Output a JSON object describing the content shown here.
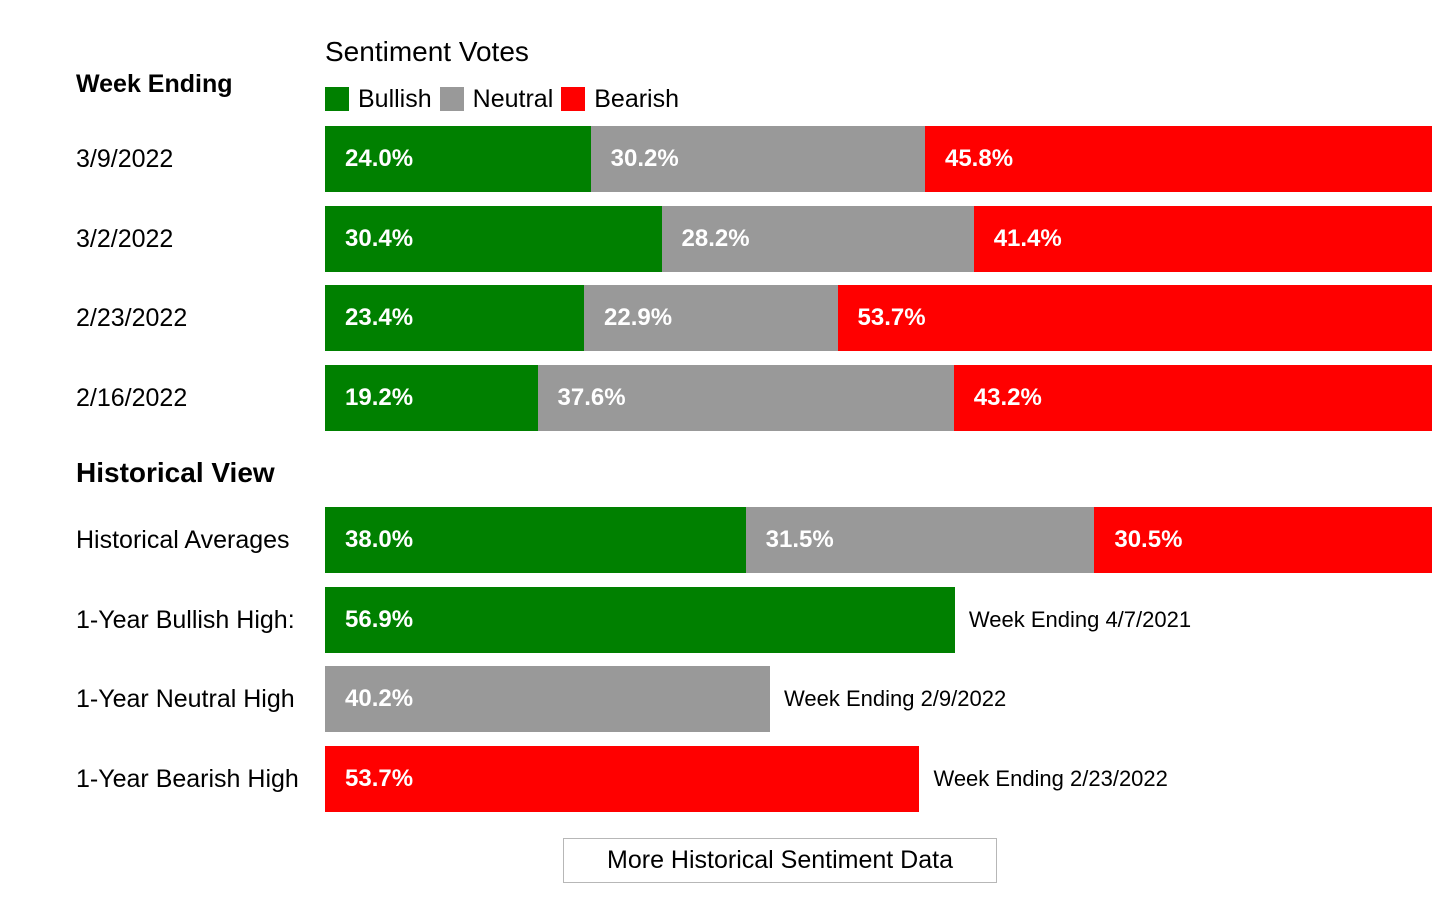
{
  "week_ending_label": "Week Ending",
  "sentiment_title": "Sentiment Votes",
  "legend": [
    {
      "label": "Bullish",
      "color": "#008000"
    },
    {
      "label": "Neutral",
      "color": "#999999"
    },
    {
      "label": "Bearish",
      "color": "#ff0000"
    }
  ],
  "historical_title": "Historical View",
  "more_button_label": "More Historical Sentiment Data",
  "chart_data": [
    {
      "type": "bar",
      "stacked": true,
      "orientation": "horizontal",
      "title": "Sentiment Votes",
      "categories": [
        "3/9/2022",
        "3/2/2022",
        "2/23/2022",
        "2/16/2022"
      ],
      "series": [
        {
          "name": "Bullish",
          "color": "#008000",
          "values": [
            24.0,
            30.4,
            23.4,
            19.2
          ],
          "labels": [
            "24.0%",
            "30.4%",
            "23.4%",
            "19.2%"
          ]
        },
        {
          "name": "Neutral",
          "color": "#999999",
          "values": [
            30.2,
            28.2,
            22.9,
            37.6
          ],
          "labels": [
            "30.2%",
            "28.2%",
            "22.9%",
            "37.6%"
          ]
        },
        {
          "name": "Bearish",
          "color": "#ff0000",
          "values": [
            45.8,
            41.4,
            53.7,
            43.2
          ],
          "labels": [
            "45.8%",
            "41.4%",
            "53.7%",
            "43.2%"
          ]
        }
      ]
    },
    {
      "type": "bar",
      "stacked": true,
      "orientation": "horizontal",
      "title": "Historical View",
      "categories": [
        "Historical Averages"
      ],
      "series": [
        {
          "name": "Bullish",
          "color": "#008000",
          "values": [
            38.0
          ],
          "labels": [
            "38.0%"
          ]
        },
        {
          "name": "Neutral",
          "color": "#999999",
          "values": [
            31.5
          ],
          "labels": [
            "31.5%"
          ]
        },
        {
          "name": "Bearish",
          "color": "#ff0000",
          "values": [
            30.5
          ],
          "labels": [
            "30.5%"
          ]
        }
      ]
    },
    {
      "type": "bar",
      "orientation": "horizontal",
      "categories": [
        "1-Year Bullish High:",
        "1-Year Neutral High",
        "1-Year Bearish High"
      ],
      "values": [
        56.9,
        40.2,
        53.7
      ],
      "labels": [
        "56.9%",
        "40.2%",
        "53.7%"
      ],
      "colors": [
        "#008000",
        "#999999",
        "#ff0000"
      ],
      "notes": [
        "Week Ending 4/7/2021",
        "Week Ending 2/9/2022",
        "Week Ending 2/23/2022"
      ]
    }
  ]
}
